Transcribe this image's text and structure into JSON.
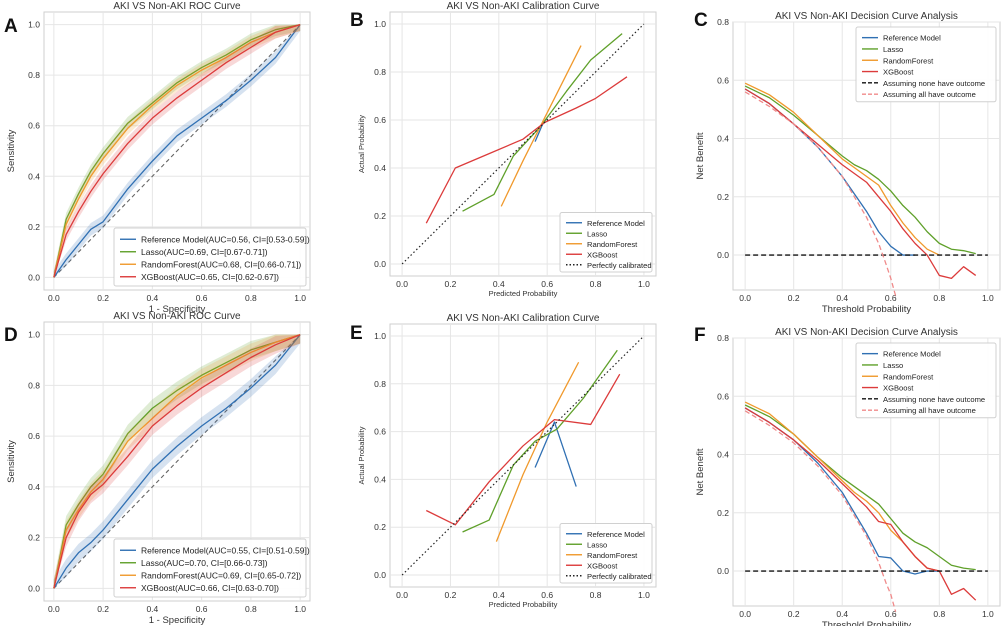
{
  "colors": {
    "reference": "#3070b3",
    "lasso": "#5fa02a",
    "randomforest": "#f0992c",
    "xgboost": "#dc3b3b",
    "grid": "#e6e6e6",
    "frame": "#cfcfcf",
    "diag": "#666666"
  },
  "chart_data": [
    {
      "id": "A",
      "type": "line",
      "panel_letter": "A",
      "title": "AKI VS Non-AKI ROC Curve",
      "xlabel": "1 - Specificity",
      "ylabel": "Sensitivity",
      "xlim": [
        -0.04,
        1.04
      ],
      "ylim": [
        -0.05,
        1.05
      ],
      "xticks": [
        "0.0",
        "0.2",
        "0.4",
        "0.6",
        "0.8",
        "1.0"
      ],
      "yticks": [
        "0.0",
        "0.2",
        "0.4",
        "0.6",
        "0.8",
        "1.0"
      ],
      "diagonal": "chance",
      "legend_position": "lower-right",
      "series": [
        {
          "name": "Reference Model(AUC=0.56, CI=[0.53-0.59])",
          "color_key": "reference",
          "x": [
            0,
            0.05,
            0.1,
            0.15,
            0.2,
            0.3,
            0.4,
            0.5,
            0.6,
            0.7,
            0.8,
            0.9,
            1.0
          ],
          "y": [
            0,
            0.07,
            0.13,
            0.19,
            0.22,
            0.35,
            0.46,
            0.56,
            0.63,
            0.7,
            0.78,
            0.87,
            1.0
          ],
          "band": 0.025
        },
        {
          "name": "Lasso(AUC=0.69, CI=[0.67-0.71])",
          "color_key": "lasso",
          "x": [
            0,
            0.05,
            0.1,
            0.15,
            0.2,
            0.3,
            0.4,
            0.5,
            0.6,
            0.7,
            0.8,
            0.9,
            1.0
          ],
          "y": [
            0,
            0.23,
            0.33,
            0.42,
            0.49,
            0.61,
            0.69,
            0.77,
            0.83,
            0.88,
            0.94,
            0.98,
            1.0
          ],
          "band": 0.025
        },
        {
          "name": "RandomForest(AUC=0.68, CI=[0.66-0.71])",
          "color_key": "randomforest",
          "x": [
            0,
            0.05,
            0.1,
            0.15,
            0.2,
            0.3,
            0.4,
            0.5,
            0.6,
            0.7,
            0.8,
            0.9,
            1.0
          ],
          "y": [
            0,
            0.21,
            0.31,
            0.4,
            0.47,
            0.59,
            0.68,
            0.76,
            0.82,
            0.87,
            0.93,
            0.97,
            1.0
          ],
          "band": 0.025
        },
        {
          "name": "XGBoost(AUC=0.65, CI=[0.62-0.67])",
          "color_key": "xgboost",
          "x": [
            0,
            0.05,
            0.1,
            0.15,
            0.2,
            0.3,
            0.4,
            0.5,
            0.6,
            0.7,
            0.8,
            0.9,
            1.0
          ],
          "y": [
            0,
            0.17,
            0.26,
            0.34,
            0.41,
            0.53,
            0.63,
            0.71,
            0.78,
            0.85,
            0.91,
            0.97,
            1.0
          ],
          "band": 0.025
        }
      ]
    },
    {
      "id": "B",
      "type": "line",
      "panel_letter": "B",
      "title": "AKI VS Non-AKI Calibration Curve",
      "xlabel": "Predicted Probability",
      "ylabel": "Actual Probability",
      "xlim": [
        -0.05,
        1.05
      ],
      "ylim": [
        -0.05,
        1.05
      ],
      "xticks": [
        "0.0",
        "0.2",
        "0.4",
        "0.6",
        "0.8",
        "1.0"
      ],
      "yticks": [
        "0.0",
        "0.2",
        "0.4",
        "0.6",
        "0.8",
        "1.0"
      ],
      "diagonal": "perfect",
      "legend_position": "lower-right",
      "series": [
        {
          "name": "Reference Model",
          "color_key": "reference",
          "x": [
            0.55,
            0.58,
            0.6
          ],
          "y": [
            0.51,
            0.58,
            0.61
          ]
        },
        {
          "name": "Lasso",
          "color_key": "lasso",
          "x": [
            0.25,
            0.38,
            0.46,
            0.57,
            0.68,
            0.78,
            0.91
          ],
          "y": [
            0.22,
            0.29,
            0.45,
            0.57,
            0.72,
            0.85,
            0.96
          ]
        },
        {
          "name": "RandomForest",
          "color_key": "randomforest",
          "x": [
            0.41,
            0.5,
            0.59,
            0.74
          ],
          "y": [
            0.24,
            0.43,
            0.61,
            0.91
          ]
        },
        {
          "name": "XGBoost",
          "color_key": "xgboost",
          "x": [
            0.1,
            0.22,
            0.36,
            0.5,
            0.59,
            0.72,
            0.8,
            0.93
          ],
          "y": [
            0.17,
            0.4,
            0.46,
            0.52,
            0.59,
            0.65,
            0.69,
            0.78
          ]
        },
        {
          "name": "Perfectly calibrated",
          "color_key": "diag",
          "dotted": true,
          "x": [
            0,
            1
          ],
          "y": [
            0,
            1
          ]
        }
      ]
    },
    {
      "id": "C",
      "type": "line",
      "panel_letter": "C",
      "title": "AKI VS Non-AKI Decision Curve Analysis",
      "xlabel": "Threshold Probability",
      "ylabel": "Net Benefit",
      "xlim": [
        -0.05,
        1.05
      ],
      "ylim": [
        -0.12,
        0.8
      ],
      "xticks": [
        "0.0",
        "0.2",
        "0.4",
        "0.6",
        "0.8",
        "1.0"
      ],
      "yticks": [
        "0.0",
        "0.2",
        "0.4",
        "0.6",
        "0.8"
      ],
      "legend_position": "top-right",
      "series": [
        {
          "name": "Reference Model",
          "color_key": "reference",
          "x": [
            0,
            0.1,
            0.2,
            0.3,
            0.4,
            0.45,
            0.5,
            0.55,
            0.6,
            0.65,
            0.7
          ],
          "y": [
            0.57,
            0.52,
            0.45,
            0.37,
            0.27,
            0.21,
            0.15,
            0.08,
            0.03,
            0.0,
            0.0
          ]
        },
        {
          "name": "Lasso",
          "color_key": "lasso",
          "x": [
            0,
            0.1,
            0.2,
            0.3,
            0.4,
            0.45,
            0.5,
            0.55,
            0.6,
            0.65,
            0.7,
            0.75,
            0.8,
            0.85,
            0.9,
            0.95
          ],
          "y": [
            0.58,
            0.54,
            0.48,
            0.41,
            0.34,
            0.31,
            0.29,
            0.26,
            0.22,
            0.17,
            0.13,
            0.08,
            0.04,
            0.02,
            0.015,
            0.005
          ]
        },
        {
          "name": "RandomForest",
          "color_key": "randomforest",
          "x": [
            0,
            0.1,
            0.2,
            0.3,
            0.4,
            0.45,
            0.5,
            0.55,
            0.6,
            0.65,
            0.7,
            0.75,
            0.8
          ],
          "y": [
            0.59,
            0.55,
            0.49,
            0.41,
            0.33,
            0.3,
            0.27,
            0.24,
            0.17,
            0.11,
            0.06,
            0.02,
            0.0
          ]
        },
        {
          "name": "XGBoost",
          "color_key": "xgboost",
          "x": [
            0,
            0.1,
            0.2,
            0.3,
            0.4,
            0.45,
            0.5,
            0.55,
            0.6,
            0.65,
            0.7,
            0.75,
            0.8,
            0.85,
            0.9,
            0.95
          ],
          "y": [
            0.57,
            0.52,
            0.45,
            0.38,
            0.31,
            0.28,
            0.25,
            0.2,
            0.15,
            0.09,
            0.04,
            0.0,
            -0.07,
            -0.08,
            -0.04,
            -0.07
          ]
        },
        {
          "name": "Assuming none have outcome",
          "color_key": "black",
          "dashed": true,
          "x": [
            0,
            1
          ],
          "y": [
            0,
            0
          ]
        },
        {
          "name": "Assuming all have outcome",
          "color_key": "pink",
          "dashed": true,
          "x": [
            0,
            0.1,
            0.2,
            0.3,
            0.4,
            0.45,
            0.5,
            0.55,
            0.58,
            0.6,
            0.62
          ],
          "y": [
            0.56,
            0.51,
            0.45,
            0.37,
            0.27,
            0.2,
            0.13,
            0.04,
            -0.03,
            -0.08,
            -0.14
          ]
        }
      ]
    },
    {
      "id": "D",
      "type": "line",
      "panel_letter": "D",
      "title": "AKI VS Non-AKI ROC Curve",
      "xlabel": "1 - Specificity",
      "ylabel": "Sensitivity",
      "xlim": [
        -0.04,
        1.04
      ],
      "ylim": [
        -0.05,
        1.05
      ],
      "xticks": [
        "0.0",
        "0.2",
        "0.4",
        "0.6",
        "0.8",
        "1.0"
      ],
      "yticks": [
        "0.0",
        "0.2",
        "0.4",
        "0.6",
        "0.8",
        "1.0"
      ],
      "diagonal": "chance",
      "legend_position": "lower-right",
      "series": [
        {
          "name": "Reference Model(AUC=0.55, CI=[0.51-0.59])",
          "color_key": "reference",
          "x": [
            0,
            0.05,
            0.1,
            0.15,
            0.2,
            0.3,
            0.4,
            0.5,
            0.6,
            0.7,
            0.8,
            0.9,
            1.0
          ],
          "y": [
            0,
            0.08,
            0.14,
            0.18,
            0.23,
            0.35,
            0.47,
            0.56,
            0.64,
            0.71,
            0.79,
            0.88,
            1.0
          ],
          "band": 0.035
        },
        {
          "name": "Lasso(AUC=0.70, CI=[0.66-0.73])",
          "color_key": "lasso",
          "x": [
            0,
            0.05,
            0.1,
            0.15,
            0.2,
            0.3,
            0.4,
            0.5,
            0.6,
            0.7,
            0.8,
            0.9,
            1.0
          ],
          "y": [
            0,
            0.25,
            0.33,
            0.4,
            0.45,
            0.61,
            0.71,
            0.78,
            0.84,
            0.89,
            0.94,
            0.97,
            1.0
          ],
          "band": 0.035
        },
        {
          "name": "RandomForest(AUC=0.69, CI=[0.65-0.72])",
          "color_key": "randomforest",
          "x": [
            0,
            0.05,
            0.1,
            0.15,
            0.2,
            0.3,
            0.4,
            0.5,
            0.6,
            0.7,
            0.8,
            0.9,
            1.0
          ],
          "y": [
            0,
            0.23,
            0.31,
            0.38,
            0.43,
            0.58,
            0.67,
            0.76,
            0.83,
            0.88,
            0.93,
            0.97,
            1.0
          ],
          "band": 0.035
        },
        {
          "name": "XGBoost(AUC=0.66, CI=[0.63-0.70])",
          "color_key": "xgboost",
          "x": [
            0,
            0.05,
            0.1,
            0.15,
            0.2,
            0.3,
            0.4,
            0.5,
            0.6,
            0.7,
            0.8,
            0.9,
            1.0
          ],
          "y": [
            0,
            0.2,
            0.3,
            0.37,
            0.41,
            0.52,
            0.64,
            0.72,
            0.79,
            0.85,
            0.91,
            0.96,
            1.0
          ],
          "band": 0.035
        }
      ]
    },
    {
      "id": "E",
      "type": "line",
      "panel_letter": "E",
      "title": "AKI VS Non-AKI Calibration Curve",
      "xlabel": "Predicted Probability",
      "ylabel": "Actual Probability",
      "xlim": [
        -0.05,
        1.05
      ],
      "ylim": [
        -0.05,
        1.05
      ],
      "xticks": [
        "0.0",
        "0.2",
        "0.4",
        "0.6",
        "0.8",
        "1.0"
      ],
      "yticks": [
        "0.0",
        "0.2",
        "0.4",
        "0.6",
        "0.8",
        "1.0"
      ],
      "diagonal": "perfect",
      "legend_position": "lower-right",
      "series": [
        {
          "name": "Reference Model",
          "color_key": "reference",
          "x": [
            0.55,
            0.63,
            0.72
          ],
          "y": [
            0.45,
            0.64,
            0.37
          ]
        },
        {
          "name": "Lasso",
          "color_key": "lasso",
          "x": [
            0.25,
            0.36,
            0.46,
            0.55,
            0.64,
            0.75,
            0.89
          ],
          "y": [
            0.18,
            0.23,
            0.46,
            0.56,
            0.61,
            0.74,
            0.94
          ]
        },
        {
          "name": "RandomForest",
          "color_key": "randomforest",
          "x": [
            0.39,
            0.5,
            0.6,
            0.73
          ],
          "y": [
            0.14,
            0.42,
            0.64,
            0.89
          ]
        },
        {
          "name": "XGBoost",
          "color_key": "xgboost",
          "x": [
            0.1,
            0.22,
            0.36,
            0.5,
            0.63,
            0.78,
            0.9
          ],
          "y": [
            0.27,
            0.21,
            0.39,
            0.54,
            0.65,
            0.63,
            0.84
          ]
        },
        {
          "name": "Perfectly calibrated",
          "color_key": "diag",
          "dotted": true,
          "x": [
            0,
            1
          ],
          "y": [
            0,
            1
          ]
        }
      ]
    },
    {
      "id": "F",
      "type": "line",
      "panel_letter": "F",
      "title": "AKI VS Non-AKI Decision Curve Analysis",
      "xlabel": "Threshold Probability",
      "ylabel": "Net Benefit",
      "xlim": [
        -0.05,
        1.05
      ],
      "ylim": [
        -0.12,
        0.8
      ],
      "xticks": [
        "0.0",
        "0.2",
        "0.4",
        "0.6",
        "0.8",
        "1.0"
      ],
      "yticks": [
        "0.0",
        "0.2",
        "0.4",
        "0.6",
        "0.8"
      ],
      "legend_position": "top-right",
      "series": [
        {
          "name": "Reference Model",
          "color_key": "reference",
          "x": [
            0,
            0.1,
            0.2,
            0.3,
            0.4,
            0.45,
            0.5,
            0.55,
            0.6,
            0.65,
            0.7,
            0.75,
            0.8
          ],
          "y": [
            0.56,
            0.51,
            0.45,
            0.37,
            0.27,
            0.2,
            0.13,
            0.05,
            0.045,
            0.0,
            -0.01,
            0.0,
            0.0
          ]
        },
        {
          "name": "Lasso",
          "color_key": "lasso",
          "x": [
            0,
            0.1,
            0.2,
            0.3,
            0.4,
            0.45,
            0.5,
            0.55,
            0.6,
            0.65,
            0.7,
            0.75,
            0.8,
            0.85,
            0.9,
            0.95
          ],
          "y": [
            0.57,
            0.53,
            0.47,
            0.39,
            0.32,
            0.29,
            0.26,
            0.23,
            0.18,
            0.13,
            0.1,
            0.08,
            0.05,
            0.02,
            0.01,
            0.005
          ]
        },
        {
          "name": "RandomForest",
          "color_key": "randomforest",
          "x": [
            0,
            0.1,
            0.2,
            0.3,
            0.4,
            0.45,
            0.5,
            0.55,
            0.6,
            0.65,
            0.7,
            0.75,
            0.8
          ],
          "y": [
            0.58,
            0.54,
            0.47,
            0.39,
            0.31,
            0.27,
            0.24,
            0.2,
            0.14,
            0.1,
            0.05,
            0.01,
            0.0
          ]
        },
        {
          "name": "XGBoost",
          "color_key": "xgboost",
          "x": [
            0,
            0.1,
            0.2,
            0.3,
            0.4,
            0.45,
            0.5,
            0.55,
            0.6,
            0.65,
            0.7,
            0.75,
            0.8,
            0.85,
            0.9,
            0.95
          ],
          "y": [
            0.56,
            0.51,
            0.45,
            0.38,
            0.3,
            0.26,
            0.22,
            0.17,
            0.16,
            0.1,
            0.05,
            0.01,
            0.0,
            -0.08,
            -0.06,
            -0.1
          ]
        },
        {
          "name": "Assuming none have outcome",
          "color_key": "black",
          "dashed": true,
          "x": [
            0,
            1
          ],
          "y": [
            0,
            0
          ]
        },
        {
          "name": "Assuming all have outcome",
          "color_key": "pink",
          "dashed": true,
          "x": [
            0,
            0.1,
            0.2,
            0.3,
            0.4,
            0.45,
            0.5,
            0.55,
            0.58,
            0.6,
            0.62
          ],
          "y": [
            0.55,
            0.5,
            0.44,
            0.36,
            0.26,
            0.19,
            0.12,
            0.03,
            -0.04,
            -0.08,
            -0.14
          ]
        }
      ]
    }
  ]
}
